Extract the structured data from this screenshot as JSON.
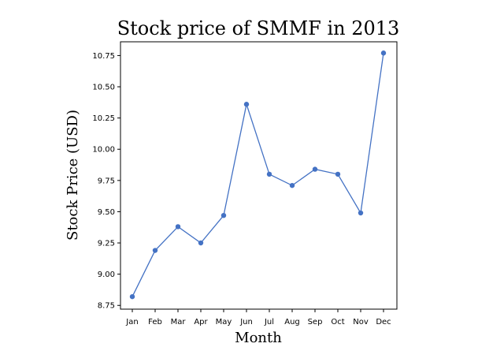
{
  "chart_data": {
    "type": "line",
    "title": "Stock price of SMMF in 2013",
    "xlabel": "Month",
    "ylabel": "Stock Price (USD)",
    "categories": [
      "Jan",
      "Feb",
      "Mar",
      "Apr",
      "May",
      "Jun",
      "Jul",
      "Aug",
      "Sep",
      "Oct",
      "Nov",
      "Dec"
    ],
    "series": [
      {
        "values": [
          8.82,
          9.19,
          9.38,
          9.25,
          9.47,
          10.36,
          9.8,
          9.71,
          9.84,
          9.8,
          9.49,
          10.77
        ],
        "color": "#4472c4"
      }
    ],
    "ylim": [
      8.72,
      10.86
    ],
    "yticks": [
      8.75,
      9.0,
      9.25,
      9.5,
      9.75,
      10.0,
      10.25,
      10.5,
      10.75
    ],
    "ytick_labels": [
      "8.75",
      "9.00",
      "9.25",
      "9.50",
      "9.75",
      "10.00",
      "10.25",
      "10.50",
      "10.75"
    ],
    "grid": false,
    "legend": "none"
  }
}
